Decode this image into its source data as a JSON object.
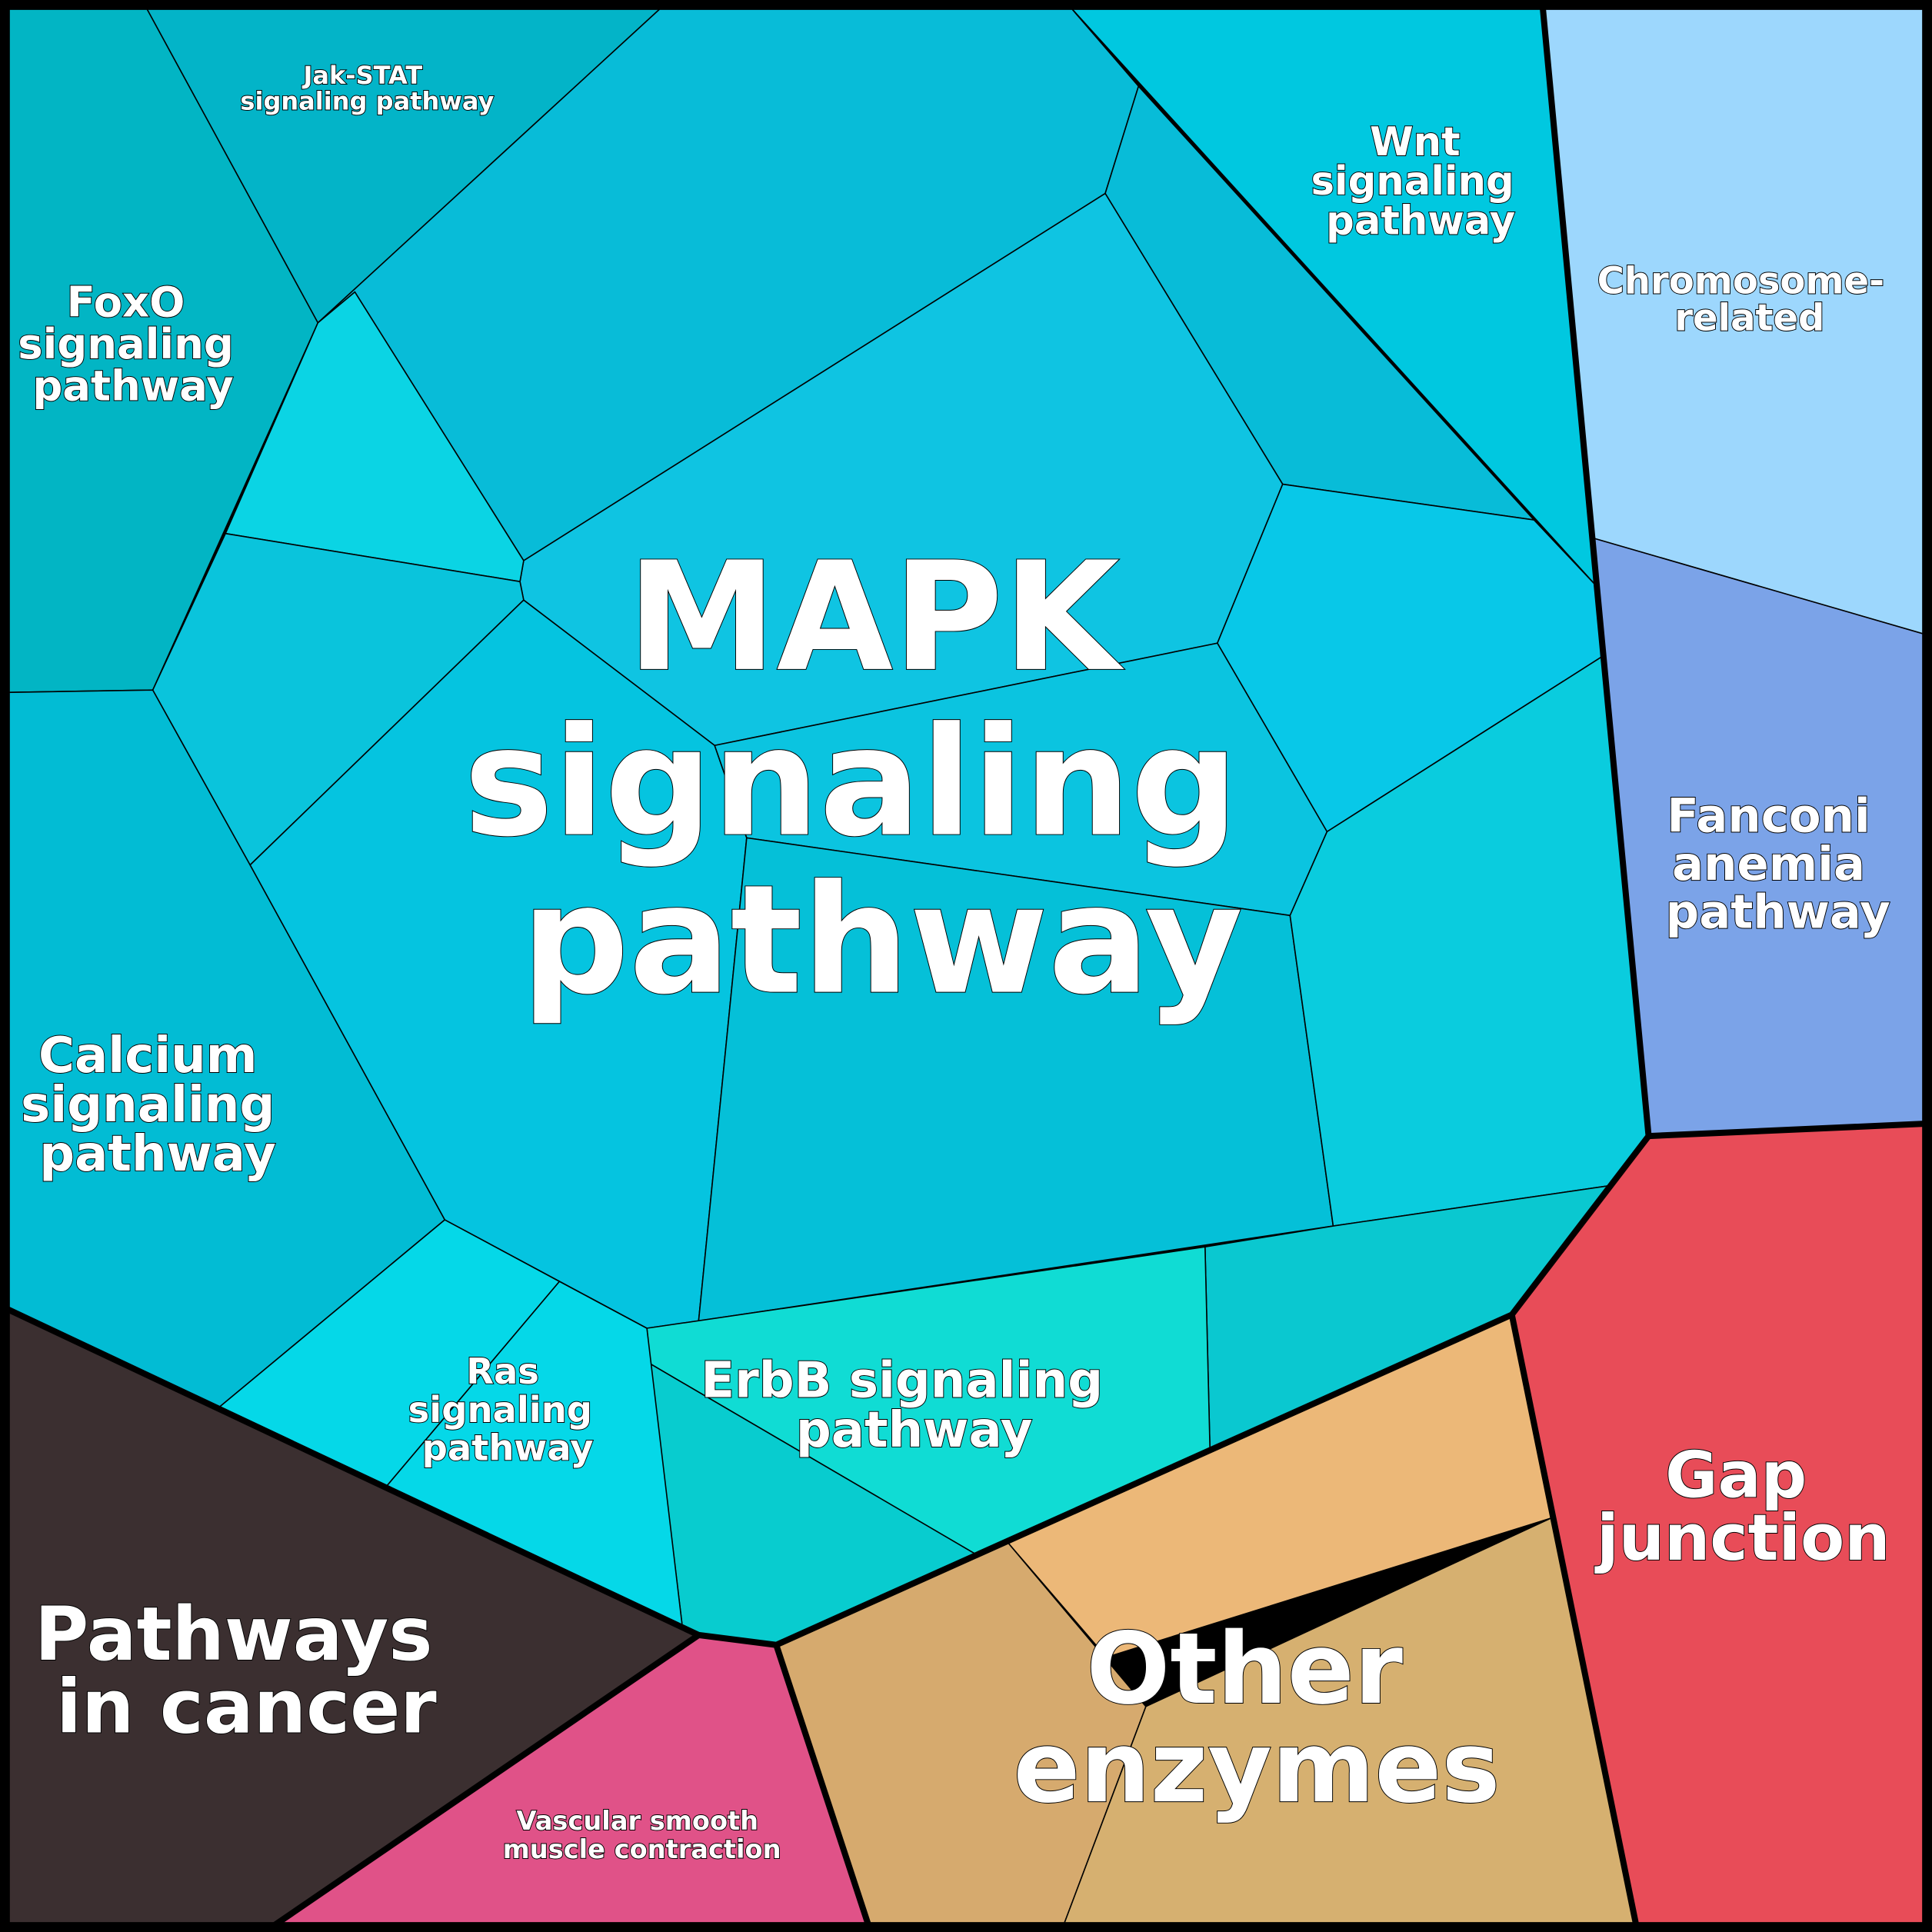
{
  "labels": {
    "mapk": [
      "MAPK",
      "signaling",
      "pathway"
    ],
    "jakstat": [
      "Jak-STAT",
      "signaling pathway"
    ],
    "foxo": [
      "FoxO",
      "signaling",
      "pathway"
    ],
    "wnt": [
      "Wnt",
      "signaling",
      "pathway"
    ],
    "chromosome": [
      "Chromosome-",
      "related"
    ],
    "fanconi": [
      "Fanconi",
      "anemia",
      "pathway"
    ],
    "calcium": [
      "Calcium",
      "signaling",
      "pathway"
    ],
    "ras": [
      "Ras",
      "signaling",
      "pathway"
    ],
    "erbb": [
      "ErbB signaling",
      "pathway"
    ],
    "gap": [
      "Gap",
      "junction"
    ],
    "cancer": [
      "Pathways",
      "in cancer"
    ],
    "vascular": [
      "Vascular smooth",
      "muscle contraction"
    ],
    "enzymes": [
      "Other",
      "enzymes"
    ]
  },
  "colors": {
    "signaling": "#08c4dc",
    "chromosome": "#9dd7fd",
    "fanconi": "#7ba3e8",
    "gap": "#e84c58",
    "cancer": "#3b2f30",
    "vascular": "#e05288",
    "enzymes": "#d6ae70"
  }
}
